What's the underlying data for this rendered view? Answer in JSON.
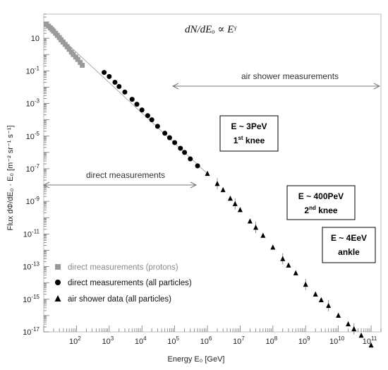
{
  "chart_data": {
    "type": "scatter",
    "title": "",
    "formula": "dN/dEₒ ∝ Eᵞ",
    "xlabel": "Energy E₀ [GeV]",
    "ylabel": "Flux dΦ/dE₀ · E₀ [m⁻² sr⁻¹ s⁻¹]",
    "xscale": "log",
    "yscale": "log",
    "xlim": [
      10,
      200000000000
    ],
    "ylim": [
      1e-17,
      300
    ],
    "x_ticks": [
      "10^2",
      "10^3",
      "10^4",
      "10^5",
      "10^6",
      "10^7",
      "10^8",
      "10^9",
      "10^10",
      "10^11"
    ],
    "y_ticks": [
      "10",
      "10^-1",
      "10^-3",
      "10^-5",
      "10^-7",
      "10^-9",
      "10^-11",
      "10^-13",
      "10^-15",
      "10^-17"
    ],
    "legend_position": "bottom-left",
    "series": [
      {
        "name": "direct measurements (protons)",
        "color": "#9a9a9a",
        "marker": "square",
        "x": [
          12,
          14,
          16,
          18,
          20,
          23,
          26,
          30,
          34,
          39,
          45,
          52,
          60,
          70,
          80,
          95,
          110,
          130,
          150
        ],
        "y": [
          70,
          55,
          43,
          34,
          27,
          20,
          15,
          11,
          8,
          5.8,
          4.2,
          3,
          2.1,
          1.4,
          1,
          0.7,
          0.5,
          0.33,
          0.22
        ]
      },
      {
        "name": "direct measurements (all particles)",
        "color": "#000000",
        "marker": "circle",
        "x": [
          700,
          1000,
          1500,
          2000,
          3000,
          5000,
          7000,
          10000,
          15000,
          20000,
          30000,
          50000,
          70000,
          100000,
          150000,
          200000,
          300000,
          500000
        ],
        "y": [
          0.08,
          0.045,
          0.02,
          0.011,
          0.005,
          0.0018,
          0.0009,
          0.0004,
          0.00018,
          0.0001,
          4e-05,
          1.5e-05,
          8e-06,
          4e-06,
          1.8e-06,
          1e-06,
          4e-07,
          1.5e-07
        ]
      },
      {
        "name": "air shower data (all particles)",
        "color": "#000000",
        "marker": "triangle",
        "x": [
          1000000,
          2000000,
          3000000,
          5000000,
          7000000,
          10000000,
          20000000,
          30000000,
          50000000,
          100000000,
          200000000,
          300000000,
          500000000,
          1000000000,
          2000000000,
          3000000000,
          5000000000,
          10000000000,
          20000000000,
          30000000000,
          50000000000,
          100000000000
        ],
        "y": [
          5e-08,
          1.2e-08,
          5e-09,
          1.5e-09,
          7e-10,
          3e-10,
          6e-11,
          2.5e-11,
          8e-12,
          1.5e-12,
          3e-13,
          1.2e-13,
          4e-14,
          8e-15,
          2e-15,
          9e-16,
          4e-16,
          1e-16,
          3e-17,
          1.5e-17,
          6e-18,
          1.5e-18
        ]
      }
    ],
    "annotations": [
      {
        "name": "air shower measurements"
      },
      {
        "name": "direct measurements"
      },
      {
        "line1": "E ~ 3PeV",
        "line2_main": "1",
        "line2_sup": "st",
        "line2_rest": " knee"
      },
      {
        "line1": "E ~ 400PeV",
        "line2_main": "2",
        "line2_sup": "nd",
        "line2_rest": "  knee"
      },
      {
        "line1": "E ~ 4EeV",
        "line2_main": "ankle",
        "line2_sup": "",
        "line2_rest": ""
      }
    ]
  }
}
